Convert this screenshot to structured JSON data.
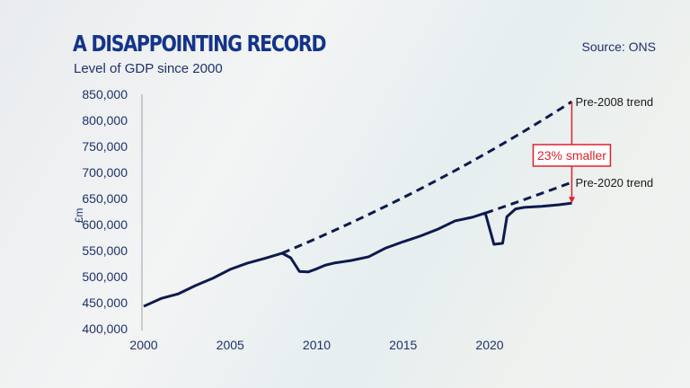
{
  "title": "A DISAPPOINTING RECORD",
  "subtitle": "Level of GDP since 2000",
  "source": "Source: ONS",
  "colors": {
    "title": "#13348a",
    "line": "#0d1a4f",
    "annotation": "#e0202b"
  },
  "chart_data": {
    "type": "line",
    "title": "A DISAPPOINTING RECORD",
    "subtitle": "Level of GDP since 2000",
    "ylabel": "£m",
    "xlabel": "",
    "xlim": [
      2000,
      2025
    ],
    "ylim": [
      400000,
      850000
    ],
    "xticks": [
      "2000",
      "2005",
      "2010",
      "2015",
      "2020"
    ],
    "yticks": [
      "400,000",
      "450,000",
      "500,000",
      "550,000",
      "600,000",
      "650,000",
      "700,000",
      "750,000",
      "800,000",
      "850,000"
    ],
    "grid": false,
    "series": [
      {
        "name": "GDP",
        "style": "solid",
        "x": [
          2000,
          2001,
          2002,
          2003,
          2004,
          2005,
          2006,
          2007,
          2008,
          2008.5,
          2009,
          2009.5,
          2010,
          2010.5,
          2011,
          2012,
          2013,
          2014,
          2015,
          2016,
          2017,
          2018,
          2019,
          2019.75,
          2020.25,
          2020.75,
          2021,
          2021.5,
          2022,
          2023,
          2024,
          2024.75
        ],
        "y": [
          443000,
          458000,
          467000,
          483000,
          497000,
          514000,
          526000,
          535000,
          545000,
          536000,
          510000,
          509000,
          515000,
          522000,
          526000,
          531000,
          538000,
          555000,
          567000,
          578000,
          591000,
          607000,
          614000,
          622000,
          562000,
          564000,
          615000,
          630000,
          633000,
          635000,
          638000,
          641000
        ]
      },
      {
        "name": "Pre-2008 trend",
        "style": "dashed",
        "x": [
          2008,
          2024.75
        ],
        "y": [
          545000,
          836000
        ]
      },
      {
        "name": "Pre-2020 trend",
        "style": "dashed",
        "x": [
          2019.75,
          2024.75
        ],
        "y": [
          622000,
          681000
        ]
      }
    ],
    "annotations": [
      {
        "text": "23% smaller",
        "x": 2024.75,
        "from": 836000,
        "to": 641000
      }
    ]
  }
}
